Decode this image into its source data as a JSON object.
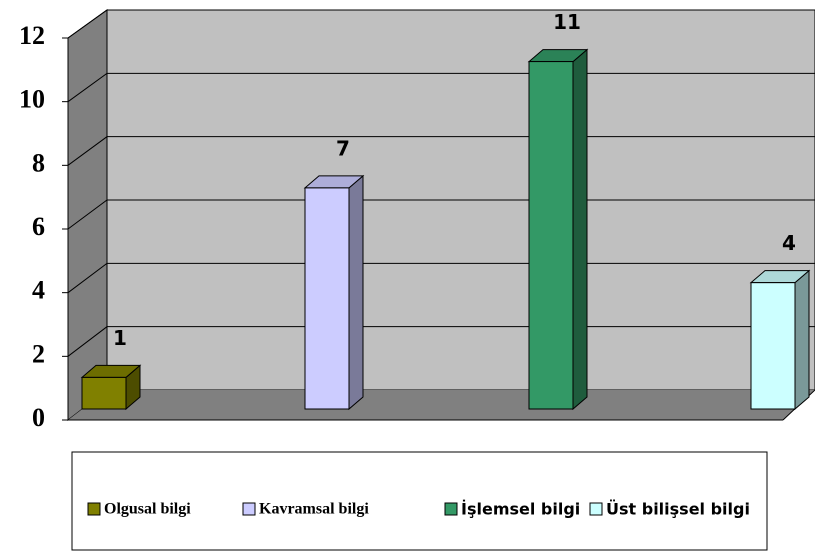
{
  "chart_data": {
    "type": "bar",
    "categories": [
      "Olgusal bilgi",
      "Kavramsal bilgi",
      "İşlemsel bilgi",
      "Üst bilişsel bilgi"
    ],
    "values": [
      1,
      7,
      11,
      4
    ],
    "colors": [
      "#808000",
      "#ccccff",
      "#339966",
      "#ccffff"
    ],
    "ylim": [
      0,
      12
    ],
    "yticks": [
      0,
      2,
      4,
      6,
      8,
      10,
      12
    ],
    "grid": true,
    "legend": "bottom"
  }
}
